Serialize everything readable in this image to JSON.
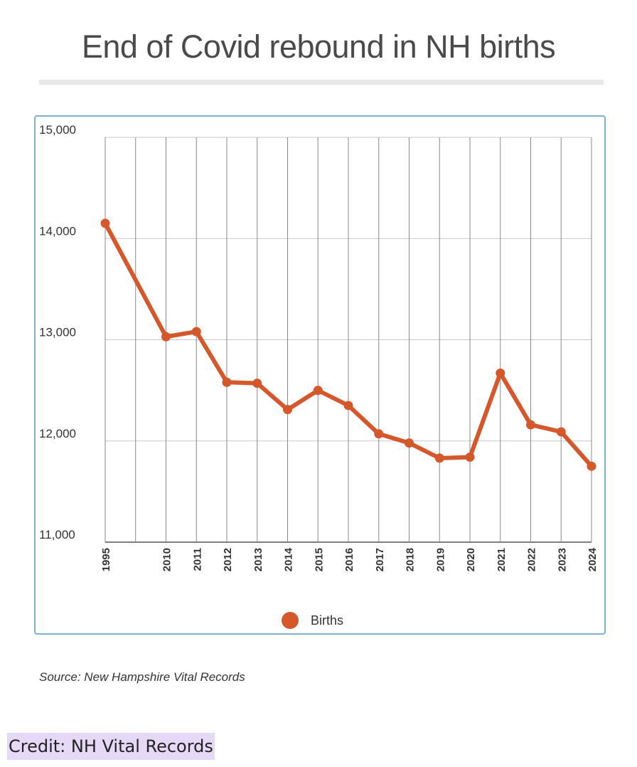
{
  "title": "End of Covid rebound in NH births",
  "source": "Source: New Hampshire Vital Records",
  "credit": "Credit: NH Vital Records",
  "colors": {
    "line": "#d4582c",
    "grid": "#c8c8c8",
    "frame": "#7fb2d0"
  },
  "chart_data": {
    "type": "line",
    "title": "End of Covid rebound in NH births",
    "xlabel": "",
    "ylabel": "",
    "ylim": [
      11000,
      15000
    ],
    "yticks": [
      11000,
      12000,
      13000,
      14000,
      15000
    ],
    "ytick_labels": [
      "11,000",
      "12,000",
      "13,000",
      "14,000",
      "15,000"
    ],
    "x": [
      "1995",
      "",
      "2010",
      "2011",
      "2012",
      "2013",
      "2014",
      "2015",
      "2016",
      "2017",
      "2018",
      "2019",
      "2020",
      "2021",
      "2022",
      "2023",
      "2024"
    ],
    "xtick_labels": [
      "1995",
      "2010",
      "2011",
      "2012",
      "2013",
      "2014",
      "2015",
      "2016",
      "2017",
      "2018",
      "2019",
      "2020",
      "2021",
      "2022",
      "2023",
      "2024"
    ],
    "legend": [
      "Births"
    ],
    "legend_position": "bottom",
    "grid": true,
    "series": [
      {
        "name": "Births",
        "points": [
          {
            "x": "1995",
            "y": 14150
          },
          {
            "x": "2010",
            "y": 13030
          },
          {
            "x": "2011",
            "y": 13080
          },
          {
            "x": "2012",
            "y": 12580
          },
          {
            "x": "2013",
            "y": 12570
          },
          {
            "x": "2014",
            "y": 12310
          },
          {
            "x": "2015",
            "y": 12500
          },
          {
            "x": "2016",
            "y": 12350
          },
          {
            "x": "2017",
            "y": 12070
          },
          {
            "x": "2018",
            "y": 11980
          },
          {
            "x": "2019",
            "y": 11830
          },
          {
            "x": "2020",
            "y": 11840
          },
          {
            "x": "2021",
            "y": 12670
          },
          {
            "x": "2022",
            "y": 12160
          },
          {
            "x": "2023",
            "y": 12090
          },
          {
            "x": "2024",
            "y": 11750
          }
        ]
      }
    ]
  }
}
